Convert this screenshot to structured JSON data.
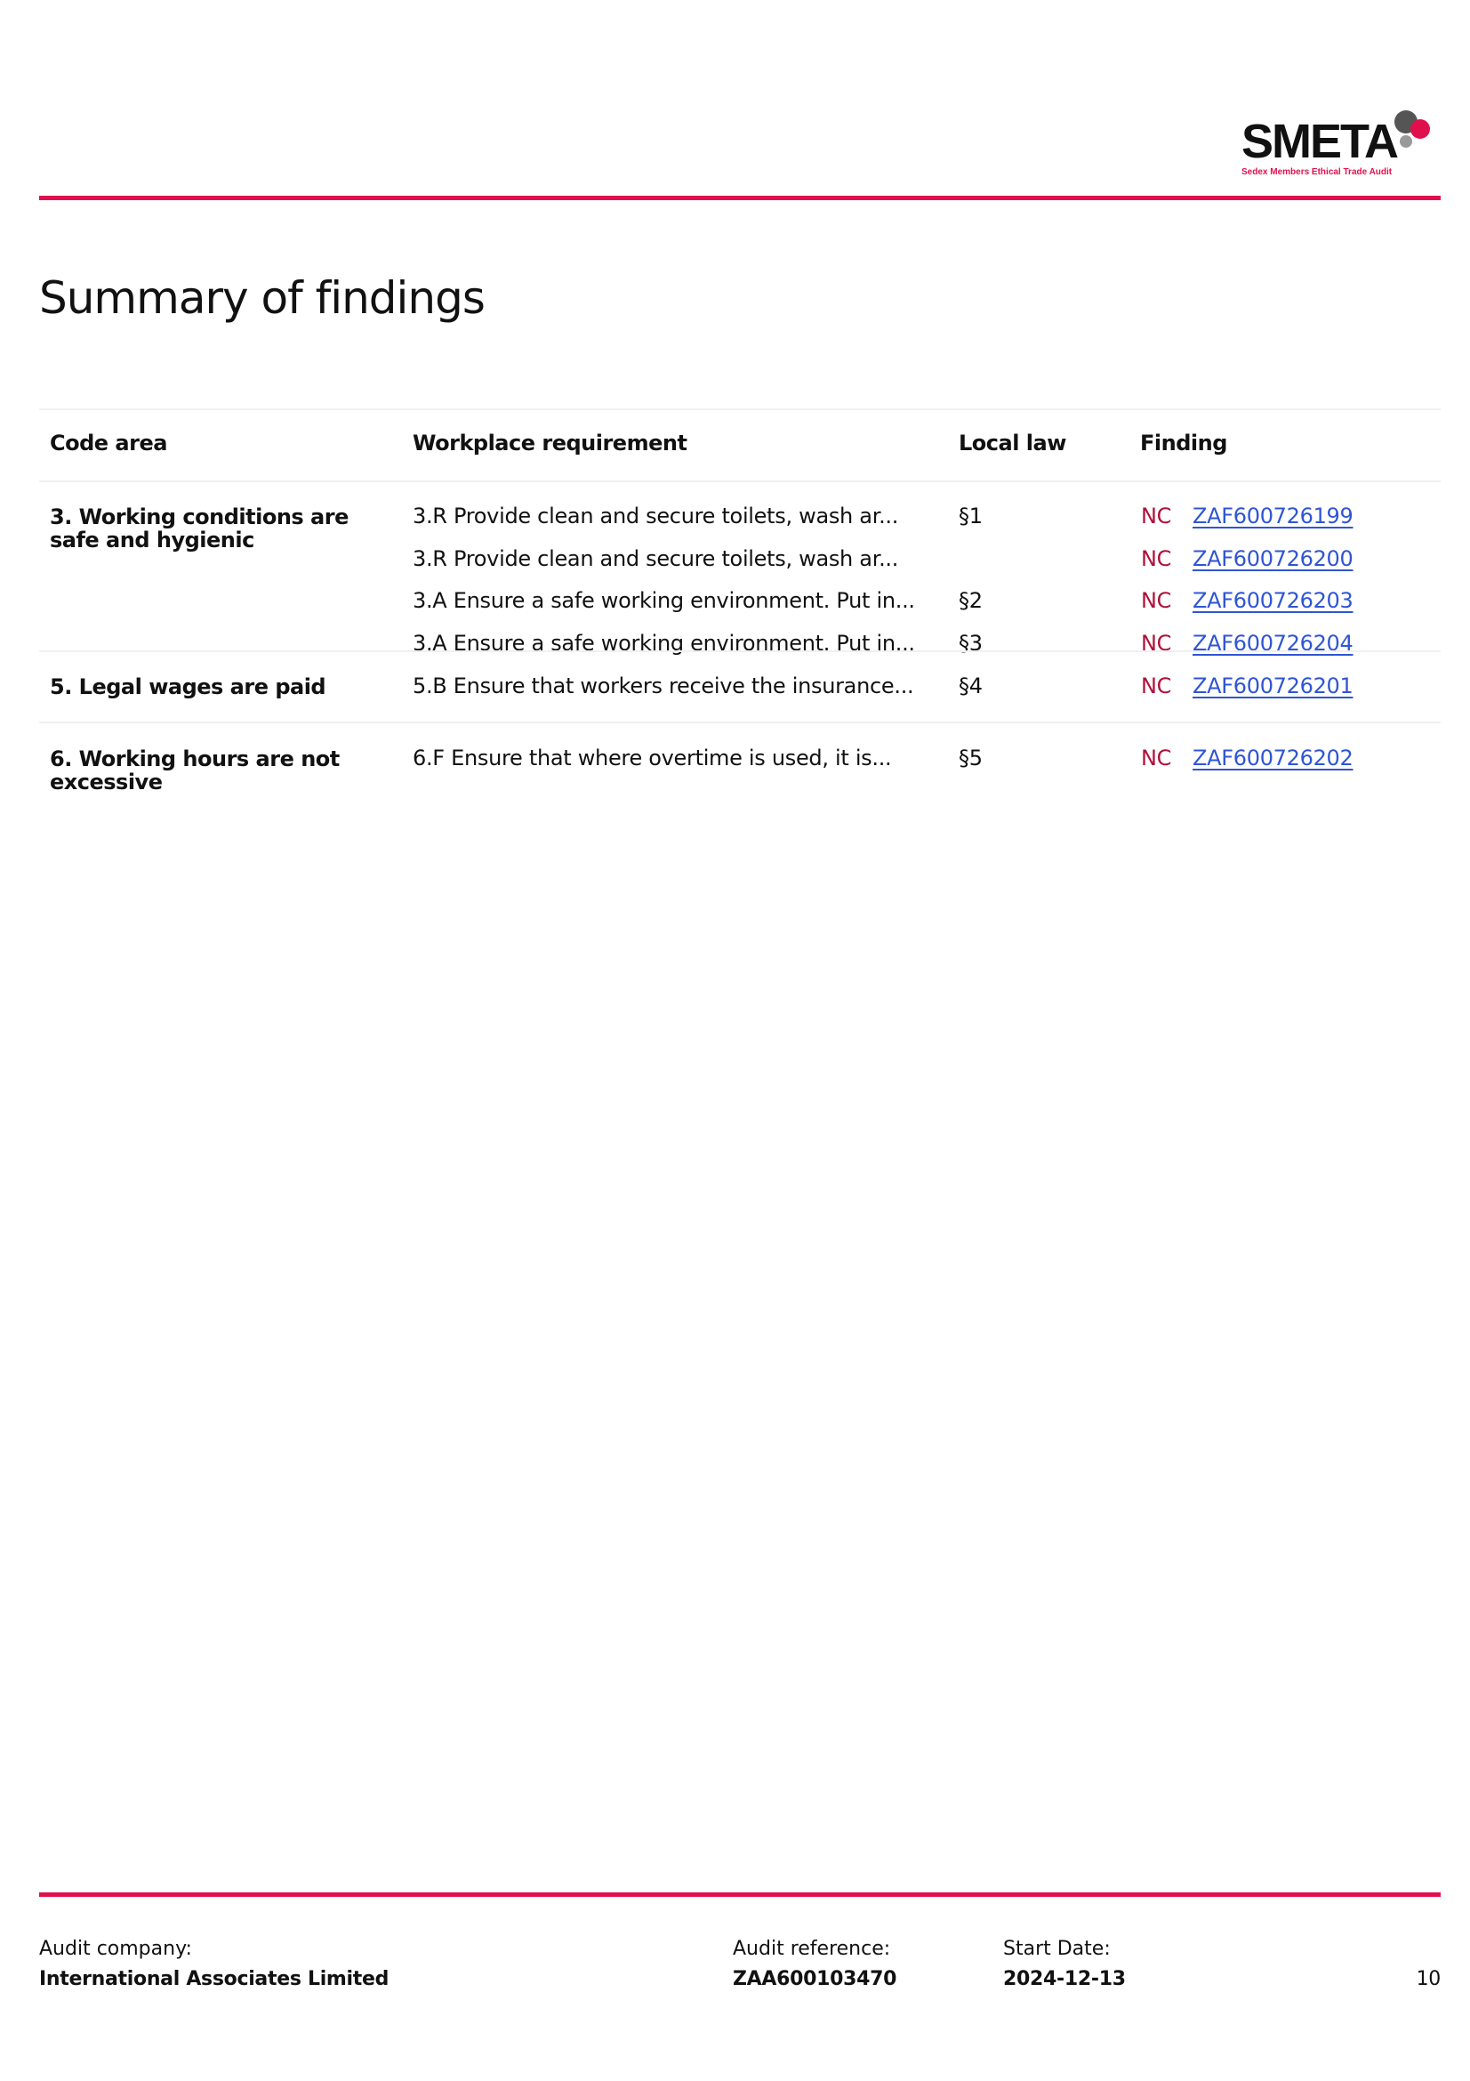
{
  "logo": {
    "text": "SMETA",
    "subtitle": "Sedex Members Ethical Trade Audit"
  },
  "colors": {
    "accent": "#e0104f",
    "nc": "#b0103a",
    "link": "#2f55d4"
  },
  "page_title": "Summary of findings",
  "table": {
    "headers": [
      "Code area",
      "Workplace requirement",
      "Local law",
      "Finding"
    ],
    "groups": [
      {
        "code_area": "3. Working conditions are safe and hygienic",
        "rows": [
          {
            "requirement": "3.R Provide clean and secure toilets, wash ar...",
            "law": "§1",
            "status": "NC",
            "finding": "ZAF600726199"
          },
          {
            "requirement": "3.R Provide clean and secure toilets, wash ar...",
            "law": "",
            "status": "NC",
            "finding": "ZAF600726200"
          },
          {
            "requirement": "3.A Ensure a safe working environment. Put in...",
            "law": "§2",
            "status": "NC",
            "finding": "ZAF600726203"
          },
          {
            "requirement": "3.A Ensure a safe working environment. Put in...",
            "law": "§3",
            "status": "NC",
            "finding": "ZAF600726204"
          }
        ]
      },
      {
        "code_area": "5. Legal wages are paid",
        "rows": [
          {
            "requirement": "5.B Ensure that workers receive the insurance...",
            "law": "§4",
            "status": "NC",
            "finding": "ZAF600726201"
          }
        ]
      },
      {
        "code_area": "6. Working hours are not excessive",
        "rows": [
          {
            "requirement": "6.F Ensure that where overtime is used, it is...",
            "law": "§5",
            "status": "NC",
            "finding": "ZAF600726202"
          }
        ]
      }
    ]
  },
  "footer": {
    "audit_company_label": "Audit company:",
    "audit_company": "International Associates Limited",
    "audit_reference_label": "Audit reference:",
    "audit_reference": "ZAA600103470",
    "start_date_label": "Start Date:",
    "start_date": "2024-12-13",
    "page_number": "10"
  }
}
